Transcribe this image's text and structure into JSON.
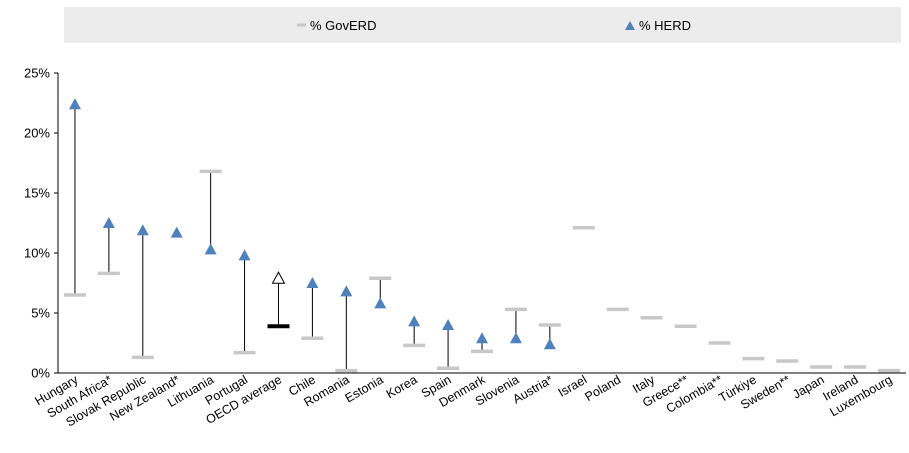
{
  "chart_data": {
    "type": "scatter",
    "title": "",
    "xlabel": "",
    "ylabel": "",
    "ylim": [
      0,
      25
    ],
    "yticks": [
      "0%",
      "5%",
      "10%",
      "15%",
      "20%",
      "25%"
    ],
    "grid": false,
    "legend_position": "top",
    "categories": [
      "Hungary",
      "South Africa*",
      "Slovak Republic",
      "New Zealand*",
      "Lithuania",
      "Portugal",
      "OECD average",
      "Chile",
      "Romania",
      "Estonia",
      "Korea",
      "Spain",
      "Denmark",
      "Slovenia",
      "Austria*",
      "Israel",
      "Poland",
      "Italy",
      "Greece**",
      "Colombia**",
      "Türkiye",
      "Sweden**",
      "Japan",
      "Ireland",
      "Luxembourg"
    ],
    "series": [
      {
        "name": "% GovERD",
        "marker": "dash",
        "color": "#c8c8c8",
        "values": [
          6.5,
          8.3,
          1.3,
          null,
          16.8,
          1.7,
          3.9,
          2.9,
          0.2,
          7.9,
          2.3,
          0.4,
          1.8,
          5.3,
          4.0,
          12.1,
          5.3,
          4.6,
          3.9,
          2.5,
          1.2,
          1.0,
          0.5,
          0.5,
          0.2
        ]
      },
      {
        "name": "% HERD",
        "marker": "triangle",
        "color": "#4f81bd",
        "values": [
          22.4,
          12.5,
          11.9,
          11.7,
          10.3,
          9.8,
          7.9,
          7.5,
          6.8,
          5.8,
          4.3,
          4.0,
          2.9,
          2.9,
          2.4,
          null,
          null,
          null,
          null,
          null,
          null,
          null,
          null,
          null,
          null
        ]
      }
    ],
    "highlight_category": "OECD average"
  },
  "colors": {
    "legend_bg": "#ececec",
    "axis": "#000000",
    "connector": "#000000",
    "oecd_marker": "#000000"
  }
}
